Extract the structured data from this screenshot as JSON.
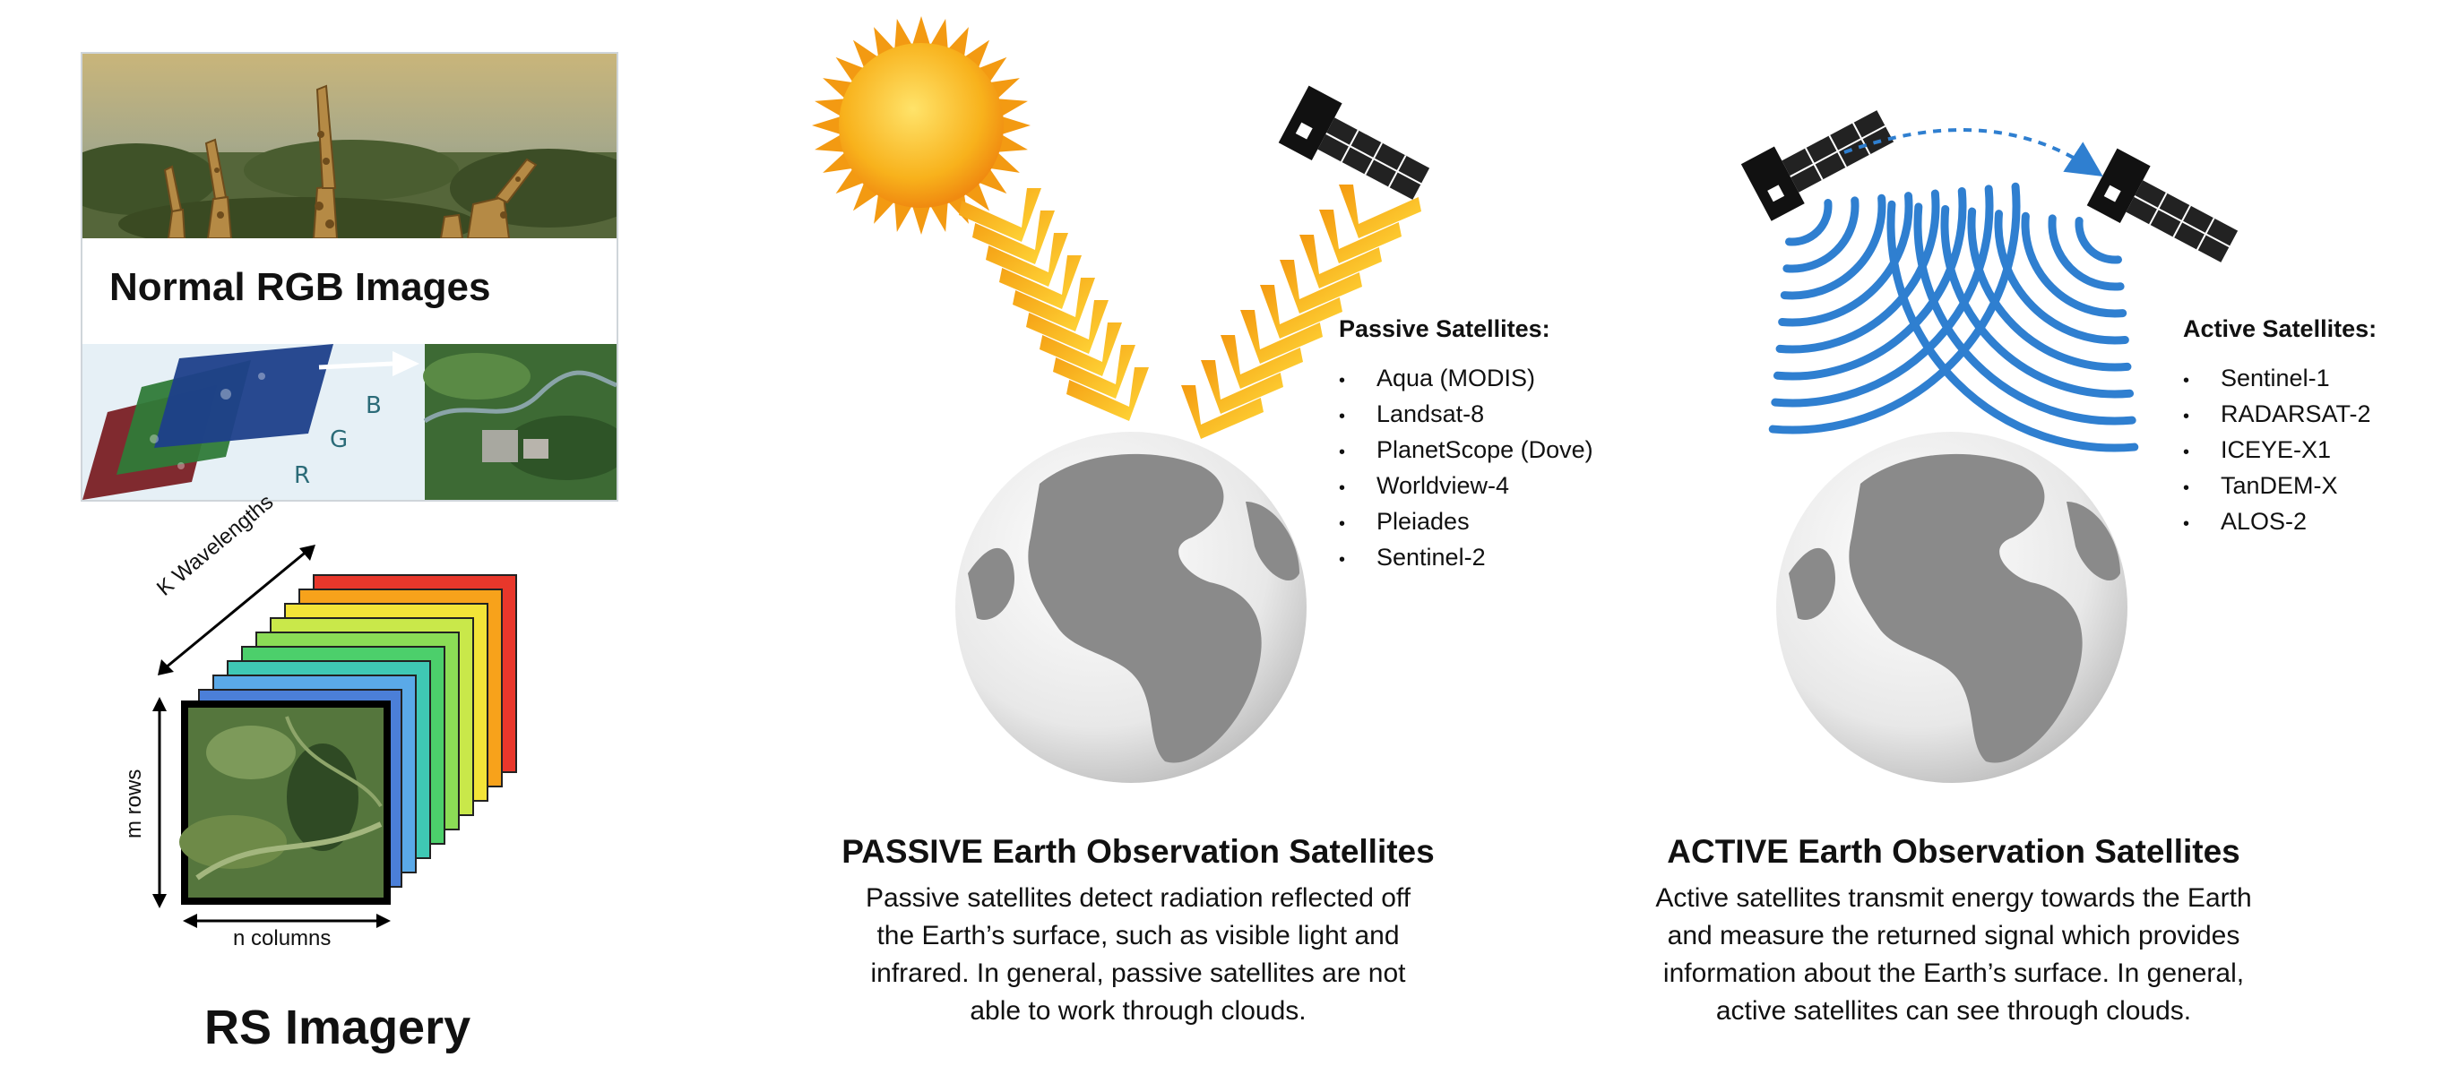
{
  "rgb_panel": {
    "title": "Normal RGB Images",
    "bands": [
      "B",
      "G",
      "R"
    ]
  },
  "rs_panel": {
    "axis_k": "K Wavelengths",
    "axis_m": "m rows",
    "axis_n": "n columns",
    "title": "RS Imagery"
  },
  "passive": {
    "list_title": "Passive Satellites:",
    "satellites": [
      "Aqua (MODIS)",
      "Landsat-8",
      "PlanetScope (Dove)",
      "Worldview-4",
      "Pleiades",
      "Sentinel-2"
    ],
    "caption_title": "PASSIVE Earth Observation Satellites",
    "caption_lines": [
      "Passive satellites detect radiation reflected off",
      "the Earth’s surface, such as visible light and",
      "infrared. In general, passive satellites are not",
      "able to work through clouds."
    ]
  },
  "active": {
    "list_title": "Active Satellites:",
    "satellites": [
      "Sentinel-1",
      "RADARSAT-2",
      "ICEYE-X1",
      "TanDEM-X",
      "ALOS-2"
    ],
    "caption_title": "ACTIVE Earth Observation Satellites",
    "caption_lines": [
      "Active satellites transmit energy towards the Earth",
      "and measure the returned signal which provides",
      "information about the Earth’s surface. In general,",
      "active satellites can see through clouds."
    ]
  },
  "colors": {
    "sun": "#f7b21c",
    "radar": "#2f7fd0",
    "globe": "#8a8a8a",
    "stack": [
      "#e8372b",
      "#f7a21b",
      "#f3e438",
      "#c9e84a",
      "#8bdc56",
      "#4ccf6b",
      "#3fc8b4",
      "#5aa9e8",
      "#4b7fd8"
    ]
  }
}
